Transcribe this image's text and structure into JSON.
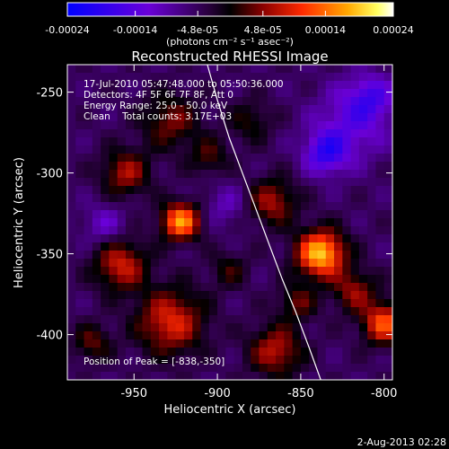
{
  "colorbar": {
    "ticks": [
      "-0.00024",
      "-0.00014",
      "-4.8e-05",
      "4.8e-05",
      "0.00014",
      "0.00024"
    ],
    "tick_values": [
      -0.00024,
      -0.00014,
      -4.8e-05,
      4.8e-05,
      0.00014,
      0.00024
    ],
    "range": [
      -0.00024,
      0.00024
    ],
    "unit_label": "(photons cm⁻² s⁻¹ asec⁻²)"
  },
  "info": {
    "line1": "17-Jul-2010 05:47:48.000 to 05:50:36.000",
    "line2": "Detectors: 4F 5F 6F 7F 8F, Att 0",
    "line3": "Energy Range: 25.0 - 50.0 keV",
    "line4": "Clean    Total counts: 3.17E+03",
    "peak": "Position of Peak = [-838,-350]"
  },
  "footer": {
    "date": "2-Aug-2013 02:28"
  },
  "colors": {
    "background": "#000000",
    "text": "#ffffff",
    "limb": "#ffffff"
  },
  "chart_data": {
    "type": "heatmap",
    "title": "Reconstructed RHESSI Image",
    "xlabel": "Heliocentric X (arcsec)",
    "ylabel": "Heliocentric Y (arcsec)",
    "xlim": [
      -990,
      -795
    ],
    "ylim": [
      -428,
      -233
    ],
    "x_ticks": [
      -950,
      -900,
      -850,
      -800
    ],
    "y_ticks": [
      -250,
      -300,
      -350,
      -400
    ],
    "x_tick_labels": [
      "-950",
      "-900",
      "-850",
      "-800"
    ],
    "y_tick_labels": [
      "-250",
      "-300",
      "-350",
      "-400"
    ],
    "colormap": "diverging blue-purple-black-red-yellow-white",
    "peak_position": [
      -838,
      -350
    ],
    "sources": [
      {
        "x": -838,
        "y": -350,
        "value": 0.00024,
        "width": 10
      },
      {
        "x": -922,
        "y": -330,
        "value": 0.00021,
        "width": 8
      },
      {
        "x": -928,
        "y": -392,
        "value": 0.00014,
        "width": 14
      },
      {
        "x": -800,
        "y": -393,
        "value": 0.00017,
        "width": 9
      },
      {
        "x": -958,
        "y": -357,
        "value": 0.00013,
        "width": 11
      },
      {
        "x": -867,
        "y": -318,
        "value": 0.00011,
        "width": 10
      },
      {
        "x": -865,
        "y": -410,
        "value": 0.00012,
        "width": 11
      },
      {
        "x": -955,
        "y": -300,
        "value": 0.00011,
        "width": 10
      },
      {
        "x": -928,
        "y": -268,
        "value": 9e-05,
        "width": 12
      },
      {
        "x": -818,
        "y": -373,
        "value": 0.0001,
        "width": 9
      },
      {
        "x": -880,
        "y": -268,
        "value": 6e-05,
        "width": 9
      },
      {
        "x": -975,
        "y": -405,
        "value": 8e-05,
        "width": 8
      },
      {
        "x": -905,
        "y": -290,
        "value": 7e-05,
        "width": 8
      },
      {
        "x": -852,
        "y": -380,
        "value": 8e-05,
        "width": 8
      },
      {
        "x": -893,
        "y": -360,
        "value": 6e-05,
        "width": 8
      },
      {
        "x": -820,
        "y": -270,
        "value": -8e-05,
        "width": 16
      },
      {
        "x": -835,
        "y": -288,
        "value": -0.00012,
        "width": 9
      },
      {
        "x": -808,
        "y": -253,
        "value": -9e-05,
        "width": 10
      },
      {
        "x": -968,
        "y": -332,
        "value": -6e-05,
        "width": 9
      },
      {
        "x": -895,
        "y": -320,
        "value": -5e-05,
        "width": 9
      }
    ],
    "limb_curve": {
      "x": [
        -906,
        -900,
        -893,
        -885,
        -877,
        -869,
        -861,
        -853,
        -845,
        -838
      ],
      "y": [
        -233,
        -255,
        -278,
        -300,
        -322,
        -344,
        -366,
        -386,
        -408,
        -428
      ]
    }
  }
}
